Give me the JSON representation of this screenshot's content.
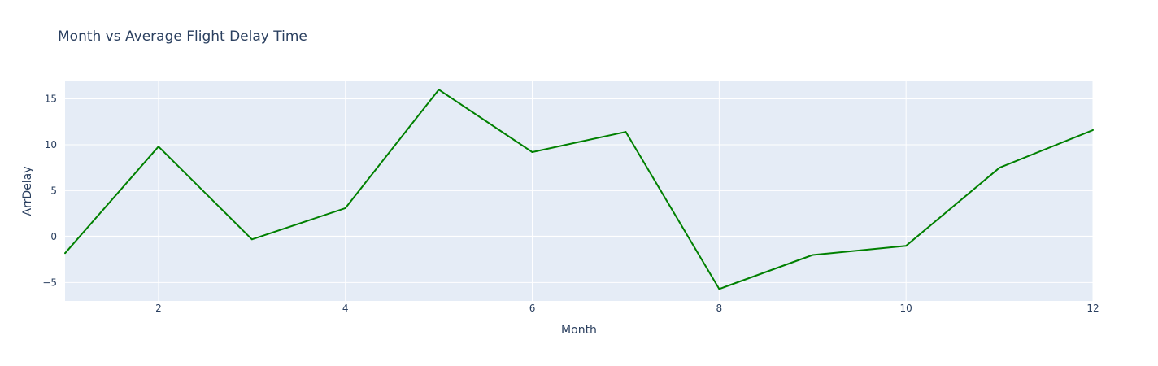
{
  "chart_data": {
    "type": "line",
    "title": "Month vs Average Flight Delay Time",
    "xlabel": "Month",
    "ylabel": "ArrDelay",
    "xlim": [
      1,
      12
    ],
    "ylim": [
      -7,
      16.9
    ],
    "x_ticks": [
      2,
      4,
      6,
      8,
      10,
      12
    ],
    "y_ticks": [
      -5,
      0,
      5,
      10,
      15
    ],
    "y_tick_labels": [
      "−5",
      "0",
      "5",
      "10",
      "15"
    ],
    "grid": true,
    "series": [
      {
        "x": [
          1,
          2,
          3,
          4,
          5,
          6,
          7,
          8,
          9,
          10,
          11,
          12
        ],
        "values": [
          -1.8,
          9.8,
          -0.3,
          3.1,
          16.0,
          9.2,
          11.4,
          -5.7,
          -2.0,
          -1.0,
          7.5,
          11.6
        ]
      }
    ],
    "colors": {
      "line": "#008000",
      "plot_bg": "#e5ecf6",
      "grid": "#ffffff",
      "text": "#2a3f5f"
    }
  }
}
